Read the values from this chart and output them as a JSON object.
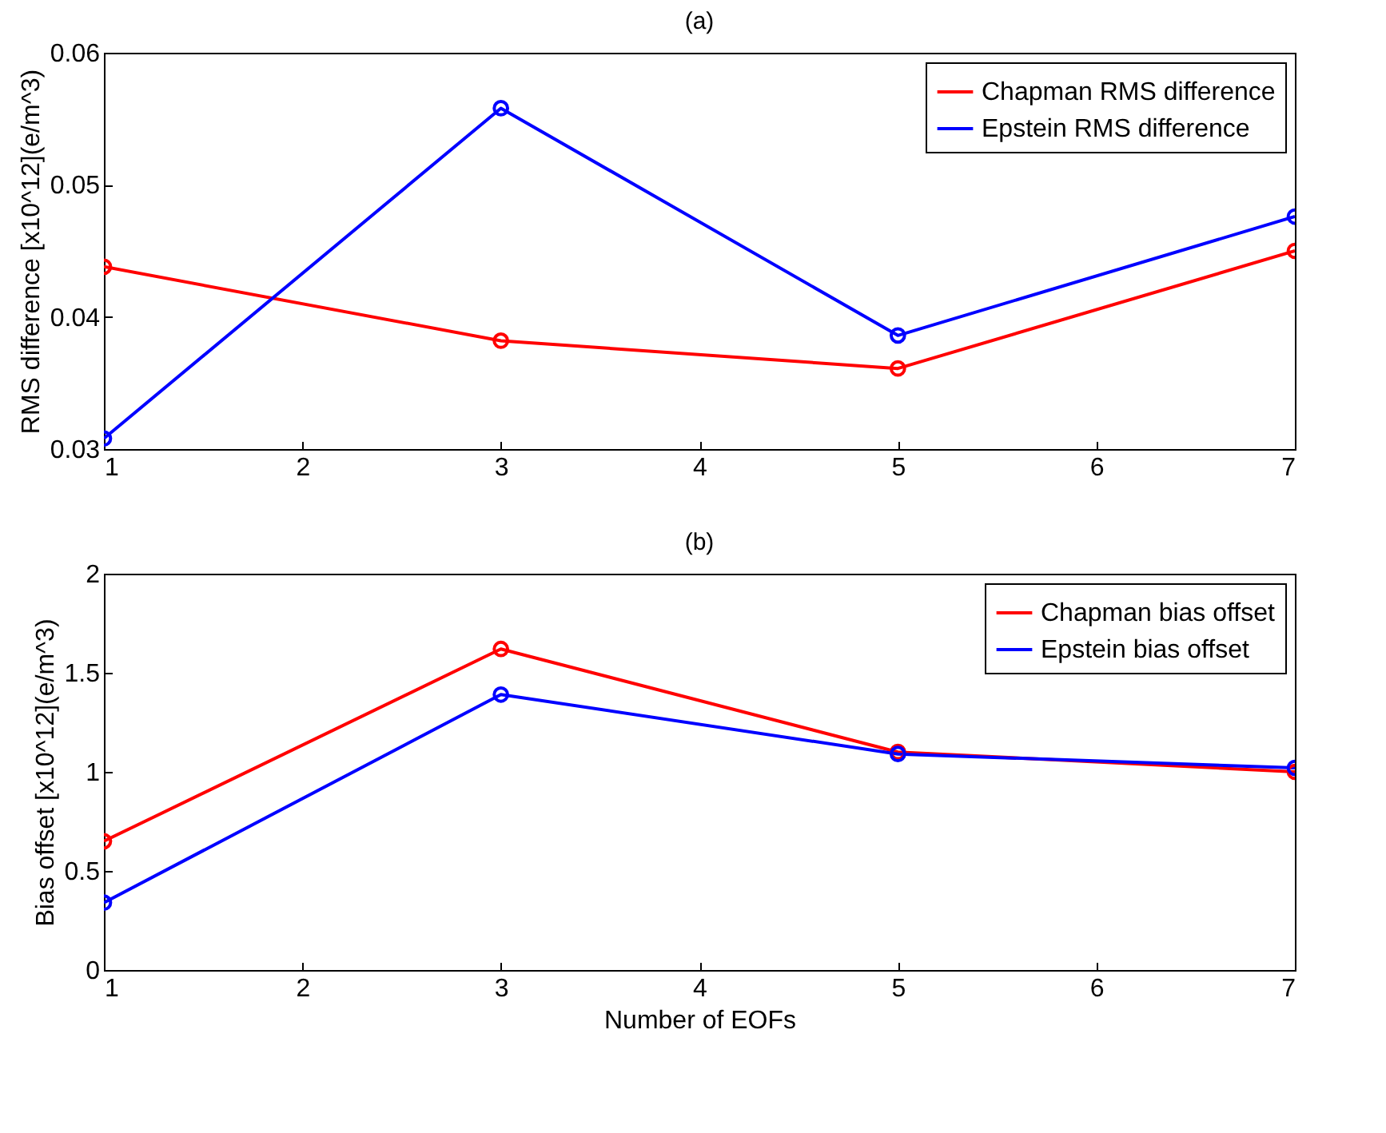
{
  "chart_data": [
    {
      "type": "line",
      "title": "(a)",
      "ylabel": "RMS difference [x10^12](e/m^3)",
      "x": [
        1,
        3,
        5,
        7
      ],
      "xlim": [
        1,
        7
      ],
      "xticks": [
        1,
        2,
        3,
        4,
        5,
        6,
        7
      ],
      "ylim": [
        0.03,
        0.06
      ],
      "yticks": [
        0.03,
        0.04,
        0.05,
        0.06
      ],
      "marker": "circle",
      "legend": "top right",
      "series": [
        {
          "name": "Chapman RMS difference",
          "color": "#ff0000",
          "values": [
            0.0438,
            0.0382,
            0.0361,
            0.045
          ]
        },
        {
          "name": "Epstein RMS difference",
          "color": "#0000ff",
          "values": [
            0.0308,
            0.0558,
            0.0386,
            0.0476
          ]
        }
      ]
    },
    {
      "type": "line",
      "title": "(b)",
      "xlabel": "Number of EOFs",
      "ylabel": "Bias offset [x10^12](e/m^3)",
      "x": [
        1,
        3,
        5,
        7
      ],
      "xlim": [
        1,
        7
      ],
      "xticks": [
        1,
        2,
        3,
        4,
        5,
        6,
        7
      ],
      "ylim": [
        0,
        2
      ],
      "yticks": [
        0,
        0.5,
        1,
        1.5,
        2
      ],
      "marker": "circle",
      "legend": "top right",
      "series": [
        {
          "name": "Chapman bias offset",
          "color": "#ff0000",
          "values": [
            0.65,
            1.62,
            1.1,
            1.0
          ]
        },
        {
          "name": "Epstein bias offset",
          "color": "#0000ff",
          "values": [
            0.34,
            1.39,
            1.09,
            1.02
          ]
        }
      ]
    }
  ]
}
